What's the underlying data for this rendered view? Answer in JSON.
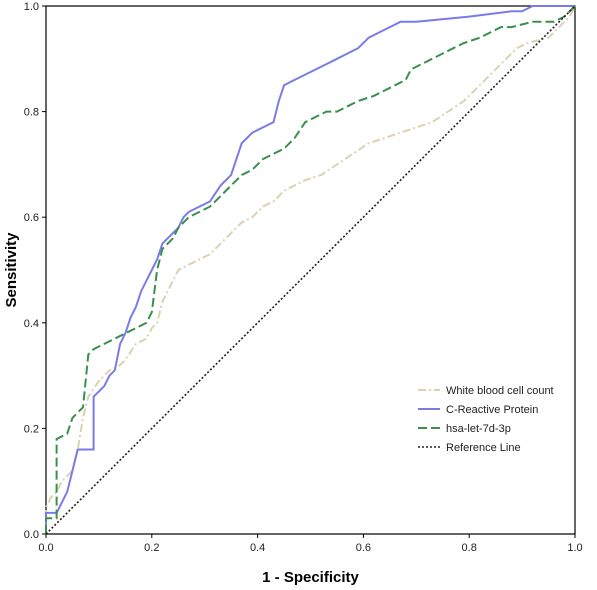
{
  "chart_data": {
    "type": "line",
    "title": "",
    "xlabel": "1 - Specificity",
    "ylabel": "Sensitivity",
    "xlim": [
      0,
      1
    ],
    "ylim": [
      0,
      1
    ],
    "x_ticks": [
      "0.0",
      "0.2",
      "0.4",
      "0.6",
      "0.8",
      "1.0"
    ],
    "y_ticks": [
      "0.0",
      "0.2",
      "0.4",
      "0.6",
      "0.8",
      "1.0"
    ],
    "grid": false,
    "legend_position": "bottom-right",
    "series": [
      {
        "name": "White blood cell count",
        "color": "#d9d3b2",
        "dash": "dash-dot",
        "points": [
          [
            0,
            0
          ],
          [
            0,
            0.05
          ],
          [
            0.01,
            0.07
          ],
          [
            0.02,
            0.08
          ],
          [
            0.03,
            0.1
          ],
          [
            0.05,
            0.12
          ],
          [
            0.06,
            0.16
          ],
          [
            0.07,
            0.22
          ],
          [
            0.08,
            0.26
          ],
          [
            0.1,
            0.29
          ],
          [
            0.12,
            0.31
          ],
          [
            0.14,
            0.32
          ],
          [
            0.15,
            0.33
          ],
          [
            0.17,
            0.36
          ],
          [
            0.19,
            0.37
          ],
          [
            0.2,
            0.39
          ],
          [
            0.21,
            0.4
          ],
          [
            0.22,
            0.44
          ],
          [
            0.23,
            0.46
          ],
          [
            0.24,
            0.48
          ],
          [
            0.25,
            0.5
          ],
          [
            0.27,
            0.51
          ],
          [
            0.29,
            0.52
          ],
          [
            0.31,
            0.53
          ],
          [
            0.33,
            0.55
          ],
          [
            0.35,
            0.57
          ],
          [
            0.37,
            0.59
          ],
          [
            0.39,
            0.6
          ],
          [
            0.41,
            0.62
          ],
          [
            0.43,
            0.63
          ],
          [
            0.45,
            0.65
          ],
          [
            0.47,
            0.66
          ],
          [
            0.49,
            0.67
          ],
          [
            0.52,
            0.68
          ],
          [
            0.55,
            0.7
          ],
          [
            0.58,
            0.72
          ],
          [
            0.61,
            0.74
          ],
          [
            0.64,
            0.75
          ],
          [
            0.67,
            0.76
          ],
          [
            0.7,
            0.77
          ],
          [
            0.73,
            0.78
          ],
          [
            0.76,
            0.8
          ],
          [
            0.79,
            0.82
          ],
          [
            0.82,
            0.85
          ],
          [
            0.85,
            0.88
          ],
          [
            0.87,
            0.9
          ],
          [
            0.89,
            0.92
          ],
          [
            0.91,
            0.93
          ],
          [
            0.95,
            0.94
          ],
          [
            0.97,
            0.96
          ],
          [
            0.99,
            0.98
          ],
          [
            1,
            1
          ]
        ]
      },
      {
        "name": "C-Reactive Protein",
        "color": "#7b7be8",
        "dash": "solid",
        "points": [
          [
            0,
            0
          ],
          [
            0,
            0.04
          ],
          [
            0.02,
            0.04
          ],
          [
            0.04,
            0.08
          ],
          [
            0.05,
            0.12
          ],
          [
            0.06,
            0.16
          ],
          [
            0.09,
            0.16
          ],
          [
            0.09,
            0.26
          ],
          [
            0.11,
            0.28
          ],
          [
            0.12,
            0.3
          ],
          [
            0.13,
            0.31
          ],
          [
            0.14,
            0.36
          ],
          [
            0.15,
            0.38
          ],
          [
            0.16,
            0.41
          ],
          [
            0.17,
            0.43
          ],
          [
            0.18,
            0.46
          ],
          [
            0.19,
            0.48
          ],
          [
            0.2,
            0.5
          ],
          [
            0.21,
            0.52
          ],
          [
            0.22,
            0.55
          ],
          [
            0.23,
            0.56
          ],
          [
            0.24,
            0.57
          ],
          [
            0.25,
            0.58
          ],
          [
            0.26,
            0.6
          ],
          [
            0.27,
            0.61
          ],
          [
            0.29,
            0.62
          ],
          [
            0.31,
            0.63
          ],
          [
            0.33,
            0.66
          ],
          [
            0.35,
            0.68
          ],
          [
            0.36,
            0.71
          ],
          [
            0.37,
            0.74
          ],
          [
            0.38,
            0.75
          ],
          [
            0.39,
            0.76
          ],
          [
            0.41,
            0.77
          ],
          [
            0.43,
            0.78
          ],
          [
            0.44,
            0.82
          ],
          [
            0.45,
            0.85
          ],
          [
            0.47,
            0.86
          ],
          [
            0.49,
            0.87
          ],
          [
            0.51,
            0.88
          ],
          [
            0.53,
            0.89
          ],
          [
            0.55,
            0.9
          ],
          [
            0.57,
            0.91
          ],
          [
            0.59,
            0.92
          ],
          [
            0.61,
            0.94
          ],
          [
            0.63,
            0.95
          ],
          [
            0.65,
            0.96
          ],
          [
            0.67,
            0.97
          ],
          [
            0.7,
            0.97
          ],
          [
            0.8,
            0.98
          ],
          [
            0.88,
            0.99
          ],
          [
            0.9,
            0.99
          ],
          [
            0.92,
            1.0
          ],
          [
            1,
            1
          ]
        ]
      },
      {
        "name": "hsa-let-7d-3p",
        "color": "#3a8f4f",
        "dash": "dashed",
        "points": [
          [
            0,
            0
          ],
          [
            0,
            0.03
          ],
          [
            0.02,
            0.03
          ],
          [
            0.02,
            0.18
          ],
          [
            0.04,
            0.19
          ],
          [
            0.05,
            0.22
          ],
          [
            0.07,
            0.24
          ],
          [
            0.08,
            0.34
          ],
          [
            0.09,
            0.35
          ],
          [
            0.11,
            0.36
          ],
          [
            0.13,
            0.37
          ],
          [
            0.15,
            0.38
          ],
          [
            0.17,
            0.39
          ],
          [
            0.19,
            0.4
          ],
          [
            0.2,
            0.42
          ],
          [
            0.21,
            0.5
          ],
          [
            0.22,
            0.54
          ],
          [
            0.24,
            0.56
          ],
          [
            0.25,
            0.58
          ],
          [
            0.27,
            0.6
          ],
          [
            0.29,
            0.61
          ],
          [
            0.31,
            0.62
          ],
          [
            0.33,
            0.64
          ],
          [
            0.35,
            0.66
          ],
          [
            0.37,
            0.68
          ],
          [
            0.39,
            0.69
          ],
          [
            0.41,
            0.71
          ],
          [
            0.43,
            0.72
          ],
          [
            0.45,
            0.73
          ],
          [
            0.47,
            0.75
          ],
          [
            0.49,
            0.78
          ],
          [
            0.51,
            0.79
          ],
          [
            0.53,
            0.8
          ],
          [
            0.55,
            0.8
          ],
          [
            0.57,
            0.81
          ],
          [
            0.59,
            0.82
          ],
          [
            0.62,
            0.83
          ],
          [
            0.64,
            0.84
          ],
          [
            0.66,
            0.85
          ],
          [
            0.68,
            0.86
          ],
          [
            0.69,
            0.88
          ],
          [
            0.71,
            0.89
          ],
          [
            0.73,
            0.9
          ],
          [
            0.75,
            0.91
          ],
          [
            0.77,
            0.92
          ],
          [
            0.79,
            0.93
          ],
          [
            0.82,
            0.94
          ],
          [
            0.84,
            0.95
          ],
          [
            0.86,
            0.96
          ],
          [
            0.88,
            0.96
          ],
          [
            0.92,
            0.97
          ],
          [
            0.96,
            0.97
          ],
          [
            0.98,
            0.98
          ],
          [
            1,
            1
          ]
        ]
      },
      {
        "name": "Reference Line",
        "color": "#222222",
        "dash": "dotted",
        "points": [
          [
            0,
            0
          ],
          [
            1,
            1
          ]
        ]
      }
    ]
  }
}
